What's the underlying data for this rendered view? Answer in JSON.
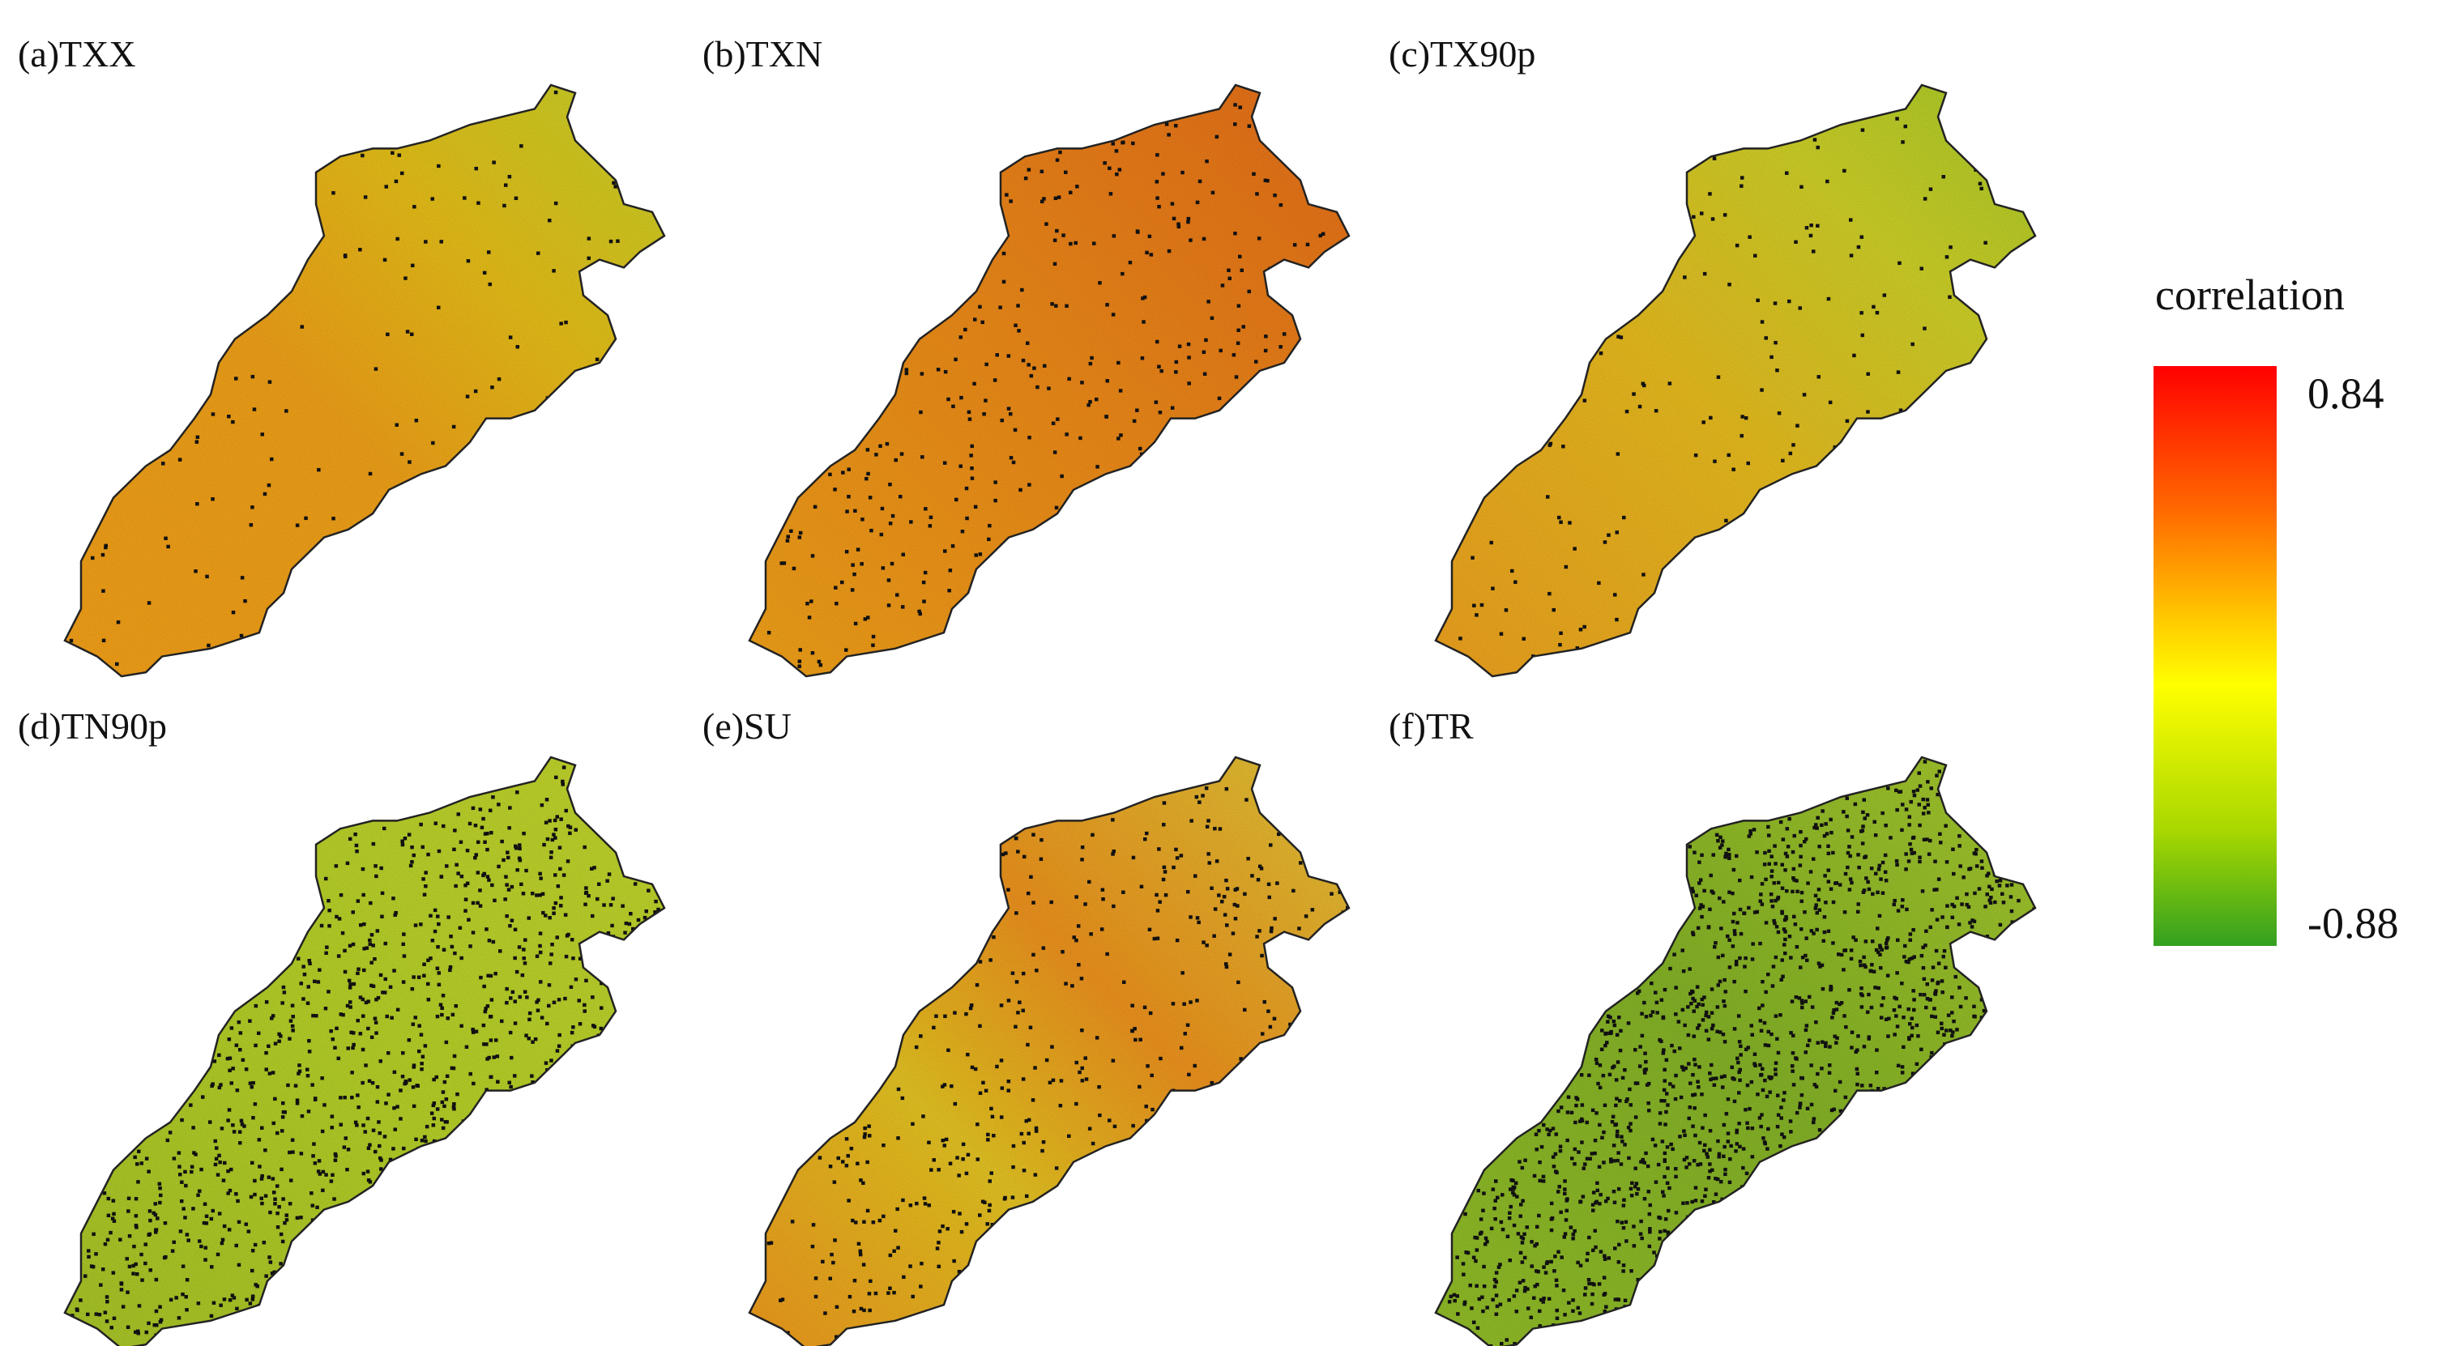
{
  "panels": [
    {
      "label": "(a)TXX",
      "scheme": "txx"
    },
    {
      "label": "(b)TXN",
      "scheme": "txn"
    },
    {
      "label": "(c)TX90p",
      "scheme": "tx90p"
    },
    {
      "label": "(d)TN90p",
      "scheme": "tn90p"
    },
    {
      "label": "(e)SU",
      "scheme": "su"
    },
    {
      "label": "(f)TR",
      "scheme": "tr"
    }
  ],
  "legend": {
    "title": "correlation",
    "max_label": "0.84",
    "min_label": "-0.88",
    "max": 0.84,
    "min": -0.88,
    "colors": [
      "#ff0000",
      "#ff6a00",
      "#ffd000",
      "#ffff00",
      "#a8d800",
      "#33a020"
    ]
  }
}
